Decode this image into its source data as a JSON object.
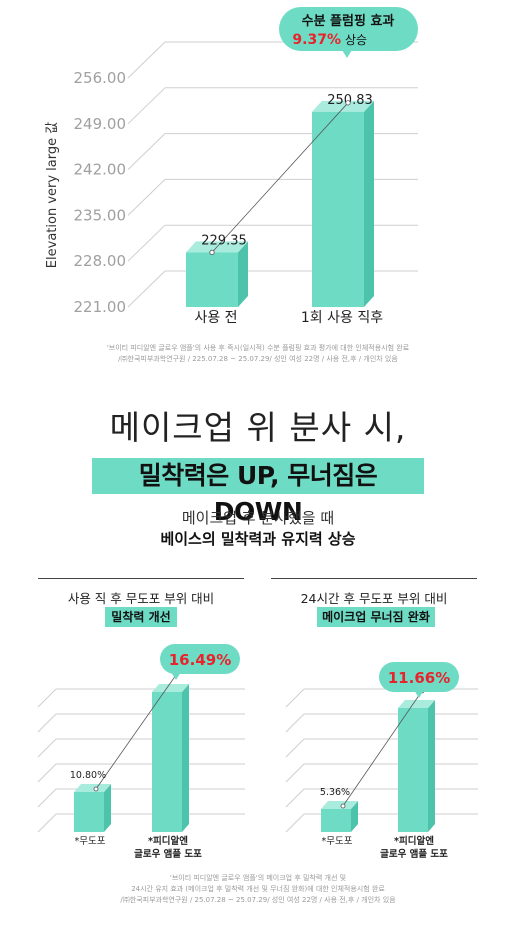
{
  "top_chart": {
    "callout": {
      "line1": "수분 플럼핑 효과",
      "percent": "9.37%",
      "suffix": "상승"
    },
    "disclaimer": [
      "'브이티 피디알엔 글로우 앰플'의 사용 후 즉시(일시적) 수분 플럼핑 효과 평가에 대한 인체적용시험 완료",
      "/㈜한국피부과학연구원 / 225.07.28 ~ 25.07.29/ 성인 여성 22명 / 사용 전,후 / 개인차 있음"
    ]
  },
  "headline": {
    "title": "메이크업 위 분사 시,",
    "highlight": "밀착력은 UP, 무너짐은 DOWN",
    "sub1": "메이크업 후 분사했을 때",
    "sub2": "베이스의 밀착력과 유지력 상승"
  },
  "left_panel": {
    "title": "사용 직 후 무도포 부위 대비",
    "tag": "밀착력 개선",
    "badge": "16.49%"
  },
  "right_panel": {
    "title": "24시간 후 무도포 부위 대비",
    "tag": "메이크업 무너짐 완화",
    "badge": "11.66%"
  },
  "bottom_disclaimer": [
    "'브이티 피디알엔 글로우 앰플'의 메이크업 후 밀착력 개선 및",
    "24시간 유지 효과 (메이크업 후 밀착력 개선 및 무너짐 완화)에 대한 인체적용시험 완료",
    "/㈜한국피부과학연구원 / 25.07.28 ~ 25.07.29/ 성인 여성 22명 / 사용 전,후 / 개인차 있음"
  ],
  "colors": {
    "bar_front": "#6edcc5",
    "bar_side": "#4ec3ab",
    "bar_top": "#a9ecdd",
    "accent_red": "#e8232b",
    "grid": "#cfcfcf"
  },
  "chart_data": [
    {
      "type": "bar",
      "categories": [
        "사용 전",
        "1회 사용 직후"
      ],
      "values": [
        229.35,
        250.83
      ],
      "value_labels": [
        "229.35",
        "250.83"
      ],
      "ylabel": "Elevation very large 값",
      "ylim": [
        221,
        256
      ],
      "yticks": [
        "221.00",
        "228.00",
        "235.00",
        "242.00",
        "249.00",
        "256.00"
      ]
    },
    {
      "type": "bar",
      "categories": [
        "*무도포",
        "*피디알엔 글로우 앰플 도포"
      ],
      "values": [
        10.8,
        null
      ],
      "value_labels": [
        "10.80%",
        ""
      ],
      "category_lines": [
        [
          "*무도포"
        ],
        [
          "*피디알엔",
          "글로우 앰플 도포"
        ]
      ]
    },
    {
      "type": "bar",
      "categories": [
        "*무도포",
        "*피디알엔 글로우 앰플 도포"
      ],
      "values": [
        5.36,
        null
      ],
      "value_labels": [
        "5.36%",
        ""
      ],
      "category_lines": [
        [
          "*무도포"
        ],
        [
          "*피디알엔",
          "글로우 앰플 도포"
        ]
      ]
    }
  ]
}
